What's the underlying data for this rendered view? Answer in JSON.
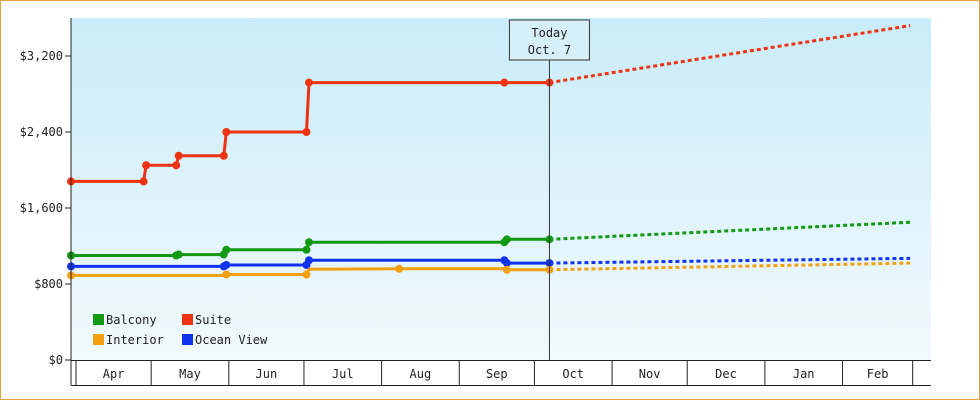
{
  "chart_data": {
    "type": "line",
    "title": "",
    "xlabel": "",
    "ylabel": "",
    "x_months": [
      "Apr",
      "May",
      "Jun",
      "Jul",
      "Aug",
      "Sep",
      "Oct",
      "Nov",
      "Dec",
      "Jan",
      "Feb"
    ],
    "ylim": [
      0,
      3600
    ],
    "yticks": [
      {
        "value": 0,
        "label": "$0"
      },
      {
        "value": 800,
        "label": "$800"
      },
      {
        "value": 1600,
        "label": "$1,600"
      },
      {
        "value": 2400,
        "label": "$2,400"
      },
      {
        "value": 3200,
        "label": "$3,200"
      }
    ],
    "grid": false,
    "legend_placement": "bottom-left",
    "today": {
      "line1": "Today",
      "line2": "Oct. 7",
      "date": "Oct 7"
    },
    "colors": {
      "Balcony": "#119911",
      "Suite": "#ee3311",
      "Interior": "#f3a010",
      "Ocean View": "#1133ee"
    },
    "legend": [
      "Balcony",
      "Suite",
      "Interior",
      "Ocean View"
    ],
    "series": [
      {
        "name": "Suite",
        "points": [
          [
            "Mar 30",
            1880
          ],
          [
            "Apr 28",
            1880
          ],
          [
            "Apr 29",
            2050
          ],
          [
            "May 11",
            2050
          ],
          [
            "May 12",
            2150
          ],
          [
            "May 30",
            2150
          ],
          [
            "May 31",
            2400
          ],
          [
            "Jul 2",
            2400
          ],
          [
            "Jul 3",
            2920
          ],
          [
            "Sep 19",
            2920
          ],
          [
            "Oct 7",
            2920
          ]
        ],
        "markers": [
          "Mar 30",
          "Apr 28",
          "Apr 29",
          "May 11",
          "May 12",
          "May 30",
          "May 31",
          "Jul 2",
          "Jul 3",
          "Sep 19",
          "Oct 7"
        ],
        "projection": [
          [
            "Oct 7",
            2920
          ],
          [
            "Feb 28",
            3520
          ]
        ]
      },
      {
        "name": "Balcony",
        "points": [
          [
            "Mar 30",
            1100
          ],
          [
            "May 11",
            1100
          ],
          [
            "May 12",
            1110
          ],
          [
            "May 30",
            1110
          ],
          [
            "May 31",
            1160
          ],
          [
            "Jul 2",
            1160
          ],
          [
            "Jul 3",
            1240
          ],
          [
            "Sep 19",
            1240
          ],
          [
            "Sep 20",
            1270
          ],
          [
            "Oct 7",
            1270
          ]
        ],
        "markers": [
          "Mar 30",
          "May 11",
          "May 12",
          "May 30",
          "May 31",
          "Jul 2",
          "Jul 3",
          "Sep 19",
          "Sep 20",
          "Oct 7"
        ],
        "projection": [
          [
            "Oct 7",
            1270
          ],
          [
            "Feb 28",
            1450
          ]
        ]
      },
      {
        "name": "Ocean View",
        "points": [
          [
            "Mar 30",
            985
          ],
          [
            "May 30",
            985
          ],
          [
            "May 31",
            1000
          ],
          [
            "Jul 2",
            1000
          ],
          [
            "Jul 3",
            1050
          ],
          [
            "Sep 19",
            1050
          ],
          [
            "Sep 20",
            1020
          ],
          [
            "Oct 7",
            1020
          ]
        ],
        "markers": [
          "Mar 30",
          "May 30",
          "May 31",
          "Jul 2",
          "Jul 3",
          "Sep 19",
          "Sep 20",
          "Oct 7"
        ],
        "projection": [
          [
            "Oct 7",
            1020
          ],
          [
            "Feb 28",
            1070
          ]
        ]
      },
      {
        "name": "Interior",
        "points": [
          [
            "Mar 30",
            890
          ],
          [
            "May 30",
            890
          ],
          [
            "May 31",
            900
          ],
          [
            "Jul 2",
            900
          ],
          [
            "Jul 3",
            955
          ],
          [
            "Aug 8",
            960
          ],
          [
            "Sep 19",
            960
          ],
          [
            "Sep 20",
            950
          ],
          [
            "Oct 7",
            950
          ]
        ],
        "markers": [
          "Mar 30",
          "May 31",
          "Jul 2",
          "Aug 8",
          "Sep 20",
          "Oct 7"
        ],
        "projection": [
          [
            "Oct 7",
            950
          ],
          [
            "Feb 28",
            1020
          ]
        ]
      }
    ]
  }
}
